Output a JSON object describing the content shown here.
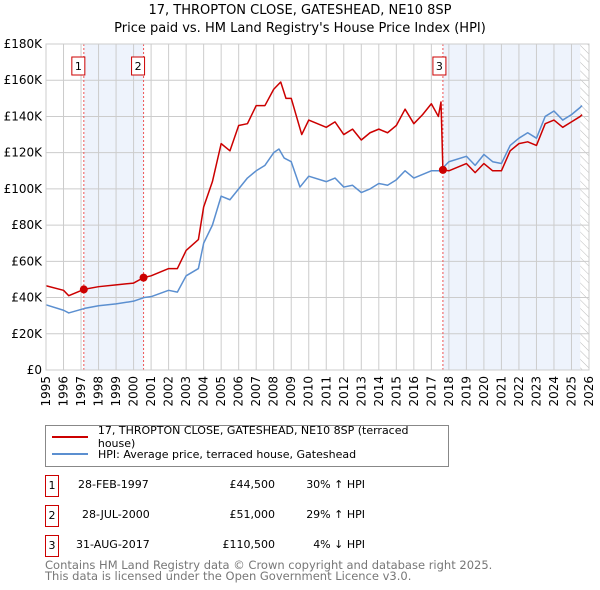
{
  "chart_data": {
    "type": "line",
    "title": "17, THROPTON CLOSE, GATESHEAD, NE10 8SP",
    "subtitle": "Price paid vs. HM Land Registry's House Price Index (HPI)",
    "xlim": [
      1995,
      2026
    ],
    "ylim": [
      0,
      180000
    ],
    "x_ticks": [
      "1995",
      "1996",
      "1997",
      "1998",
      "1999",
      "2000",
      "2001",
      "2002",
      "2003",
      "2004",
      "2005",
      "2006",
      "2007",
      "2008",
      "2009",
      "2010",
      "2011",
      "2012",
      "2013",
      "2014",
      "2015",
      "2016",
      "2017",
      "2018",
      "2019",
      "2020",
      "2021",
      "2022",
      "2023",
      "2024",
      "2025",
      "2026"
    ],
    "y_ticks": [
      {
        "v": 0,
        "label": "£0"
      },
      {
        "v": 20000,
        "label": "£20K"
      },
      {
        "v": 40000,
        "label": "£40K"
      },
      {
        "v": 60000,
        "label": "£60K"
      },
      {
        "v": 80000,
        "label": "£80K"
      },
      {
        "v": 100000,
        "label": "£100K"
      },
      {
        "v": 120000,
        "label": "£120K"
      },
      {
        "v": 140000,
        "label": "£140K"
      },
      {
        "v": 160000,
        "label": "£160K"
      },
      {
        "v": 180000,
        "label": "£180K"
      }
    ],
    "grid": true,
    "shaded_ranges": [
      [
        1997.16,
        2000.57
      ],
      [
        2017.66,
        2025.5
      ]
    ],
    "hatched_from": 2025.5,
    "series": [
      {
        "name": "17, THROPTON CLOSE, GATESHEAD, NE10 8SP (terraced house)",
        "color": "#cc0000",
        "x": [
          1995,
          1996,
          1996.3,
          1997.16,
          1998,
          1999,
          2000,
          2000.57,
          2001,
          2002,
          2002.5,
          2003,
          2003.7,
          2004,
          2004.5,
          2005,
          2005.5,
          2006,
          2006.5,
          2007,
          2007.5,
          2008,
          2008.4,
          2008.7,
          2009,
          2009.6,
          2010,
          2011,
          2011.5,
          2012,
          2012.5,
          2013,
          2013.5,
          2014,
          2014.5,
          2015,
          2015.5,
          2016,
          2016.5,
          2017,
          2017.4,
          2017.55,
          2017.66,
          2018,
          2019,
          2019.5,
          2020,
          2020.5,
          2021,
          2021.5,
          2022,
          2022.5,
          2023,
          2023.5,
          2024,
          2024.5,
          2025,
          2025.5,
          2025.6
        ],
        "y": [
          46500,
          44000,
          41000,
          44500,
          46000,
          47000,
          48000,
          51000,
          52000,
          56000,
          56000,
          66000,
          72000,
          90000,
          104000,
          125000,
          121000,
          135000,
          136000,
          146000,
          146000,
          155000,
          159000,
          150000,
          150000,
          130000,
          138000,
          134000,
          137000,
          130000,
          133000,
          127000,
          131000,
          133000,
          131000,
          135000,
          144000,
          136000,
          141000,
          147000,
          140000,
          148000,
          110500,
          110000,
          114000,
          109000,
          114000,
          110000,
          110000,
          121000,
          125000,
          126000,
          124000,
          136000,
          138000,
          134000,
          137000,
          140000,
          141000
        ]
      },
      {
        "name": "HPI: Average price, terraced house, Gateshead",
        "color": "#5b8fd0",
        "x": [
          1995,
          1996,
          1996.3,
          1997.2,
          1998,
          1999,
          2000,
          2000.6,
          2001,
          2002,
          2002.5,
          2003,
          2003.7,
          2004,
          2004.5,
          2005,
          2005.5,
          2006,
          2006.5,
          2007,
          2007.5,
          2008,
          2008.3,
          2008.6,
          2009,
          2009.5,
          2010,
          2011,
          2011.5,
          2012,
          2012.5,
          2013,
          2013.5,
          2014,
          2014.5,
          2015,
          2015.5,
          2016,
          2017,
          2017.5,
          2018,
          2019,
          2019.5,
          2020,
          2020.5,
          2021,
          2021.5,
          2022,
          2022.5,
          2023,
          2023.5,
          2024,
          2024.5,
          2025,
          2025.5,
          2025.6
        ],
        "y": [
          36000,
          33000,
          31500,
          34000,
          35500,
          36500,
          38000,
          40000,
          40500,
          44000,
          43000,
          52000,
          56000,
          70000,
          80000,
          96000,
          94000,
          100000,
          106000,
          110000,
          113000,
          120000,
          122000,
          117000,
          115000,
          101000,
          107000,
          104000,
          106000,
          101000,
          102000,
          98000,
          100000,
          103000,
          102000,
          105000,
          110000,
          106000,
          110000,
          110000,
          115000,
          118000,
          113000,
          119000,
          115000,
          114000,
          124000,
          128000,
          131000,
          128000,
          140000,
          143000,
          138000,
          141000,
          145000,
          146000
        ]
      }
    ],
    "sales": [
      {
        "label": "1",
        "x": 1997.16,
        "y": 44500,
        "date": "28-FEB-1997",
        "price": "£44,500",
        "hpi": "30% ↑ HPI"
      },
      {
        "label": "2",
        "x": 2000.57,
        "y": 51000,
        "date": "28-JUL-2000",
        "price": "£51,000",
        "hpi": "29% ↑ HPI"
      },
      {
        "label": "3",
        "x": 2017.66,
        "y": 110500,
        "date": "31-AUG-2017",
        "price": "£110,500",
        "hpi": "4% ↓ HPI"
      }
    ]
  },
  "footer": {
    "line1": "Contains HM Land Registry data © Crown copyright and database right 2025.",
    "line2": "This data is licensed under the Open Government Licence v3.0."
  }
}
